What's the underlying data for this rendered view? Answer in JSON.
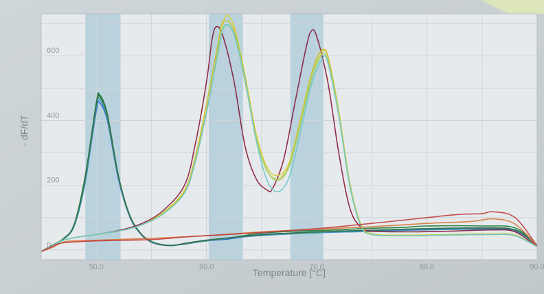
{
  "chart_data": {
    "type": "line",
    "title": "",
    "xlabel": "Temperature [°C]",
    "ylabel": "- dF/dT",
    "xlim": [
      45,
      90
    ],
    "ylim": [
      -30,
      730
    ],
    "xticks": [
      "",
      "50.0",
      "60.0",
      "70.0",
      "80.0",
      "90.0"
    ],
    "yticks": [
      0,
      200,
      400,
      600
    ],
    "grid": true,
    "legend": "none",
    "shaded_bands": [
      [
        49.0,
        52.2
      ],
      [
        60.2,
        63.3
      ],
      [
        67.6,
        70.6
      ]
    ],
    "series": [
      {
        "color": "#1f7a3a",
        "values": [
          [
            45,
            -5
          ],
          [
            46,
            14
          ],
          [
            47,
            34
          ],
          [
            48,
            80
          ],
          [
            49,
            230
          ],
          [
            50,
            455
          ],
          [
            50.3,
            480
          ],
          [
            51,
            420
          ],
          [
            52,
            230
          ],
          [
            53,
            110
          ],
          [
            54,
            52
          ],
          [
            55,
            26
          ],
          [
            56,
            16
          ],
          [
            57,
            14
          ],
          [
            58,
            20
          ],
          [
            60,
            30
          ],
          [
            62,
            36
          ],
          [
            63,
            42
          ],
          [
            65,
            52
          ],
          [
            68,
            58
          ],
          [
            70,
            60
          ],
          [
            72,
            62
          ],
          [
            74,
            66
          ],
          [
            76,
            68
          ],
          [
            78,
            70
          ],
          [
            80,
            74
          ],
          [
            85,
            74
          ],
          [
            88,
            68
          ],
          [
            90,
            15
          ]
        ]
      },
      {
        "color": "#2a63c9",
        "values": [
          [
            45,
            -5
          ],
          [
            46,
            14
          ],
          [
            47,
            34
          ],
          [
            48,
            76
          ],
          [
            49,
            215
          ],
          [
            50,
            430
          ],
          [
            50.3,
            455
          ],
          [
            51,
            400
          ],
          [
            52,
            220
          ],
          [
            53,
            105
          ],
          [
            54,
            50
          ],
          [
            55,
            24
          ],
          [
            56,
            15
          ],
          [
            57,
            14
          ],
          [
            58,
            18
          ],
          [
            60,
            28
          ],
          [
            62,
            34
          ],
          [
            65,
            48
          ],
          [
            68,
            52
          ],
          [
            70,
            54
          ],
          [
            74,
            58
          ],
          [
            78,
            62
          ],
          [
            82,
            66
          ],
          [
            85,
            66
          ],
          [
            88,
            60
          ],
          [
            90,
            14
          ]
        ]
      },
      {
        "color": "#3a8fc4",
        "values": [
          [
            45,
            -5
          ],
          [
            46,
            14
          ],
          [
            47,
            33
          ],
          [
            48,
            74
          ],
          [
            49,
            210
          ],
          [
            50,
            440
          ],
          [
            50.3,
            465
          ],
          [
            51,
            405
          ],
          [
            52,
            225
          ],
          [
            53,
            108
          ],
          [
            54,
            51
          ],
          [
            55,
            25
          ],
          [
            56,
            16
          ],
          [
            57,
            15
          ],
          [
            58,
            19
          ],
          [
            60,
            29
          ],
          [
            64,
            42
          ],
          [
            68,
            50
          ],
          [
            72,
            55
          ],
          [
            76,
            58
          ],
          [
            80,
            62
          ],
          [
            85,
            64
          ],
          [
            88,
            58
          ],
          [
            90,
            14
          ]
        ]
      },
      {
        "color": "#4aa24a",
        "values": [
          [
            45,
            -5
          ],
          [
            46,
            14
          ],
          [
            47,
            35
          ],
          [
            48,
            78
          ],
          [
            49,
            222
          ],
          [
            50,
            448
          ],
          [
            50.3,
            472
          ],
          [
            51,
            412
          ],
          [
            52,
            228
          ],
          [
            53,
            108
          ],
          [
            54,
            52
          ],
          [
            55,
            26
          ],
          [
            56,
            16
          ],
          [
            57,
            14
          ],
          [
            58,
            19
          ],
          [
            60,
            29
          ],
          [
            64,
            44
          ],
          [
            68,
            52
          ],
          [
            72,
            58
          ],
          [
            76,
            62
          ],
          [
            80,
            66
          ],
          [
            85,
            68
          ],
          [
            88,
            62
          ],
          [
            90,
            15
          ]
        ]
      },
      {
        "color": "#2f6e4d",
        "values": [
          [
            45,
            -5
          ],
          [
            46,
            14
          ],
          [
            47,
            34
          ],
          [
            48,
            79
          ],
          [
            49,
            226
          ],
          [
            50,
            452
          ],
          [
            50.3,
            476
          ],
          [
            51,
            416
          ],
          [
            52,
            230
          ],
          [
            53,
            110
          ],
          [
            54,
            52
          ],
          [
            55,
            26
          ],
          [
            56,
            16
          ],
          [
            57,
            14
          ],
          [
            58,
            20
          ],
          [
            60,
            30
          ],
          [
            64,
            44
          ],
          [
            68,
            53
          ],
          [
            72,
            58
          ],
          [
            76,
            62
          ],
          [
            80,
            66
          ],
          [
            85,
            68
          ],
          [
            88,
            62
          ],
          [
            90,
            15
          ]
        ]
      },
      {
        "color": "#8a1c3c",
        "values": [
          [
            45,
            -5
          ],
          [
            46,
            12
          ],
          [
            47,
            30
          ],
          [
            48,
            38
          ],
          [
            50,
            48
          ],
          [
            52,
            60
          ],
          [
            54,
            80
          ],
          [
            56,
            120
          ],
          [
            58,
            200
          ],
          [
            59,
            330
          ],
          [
            60,
            520
          ],
          [
            60.5,
            650
          ],
          [
            60.9,
            690
          ],
          [
            61.5,
            660
          ],
          [
            62.5,
            520
          ],
          [
            63.5,
            320
          ],
          [
            64.5,
            220
          ],
          [
            65.5,
            185
          ],
          [
            66,
            190
          ],
          [
            67,
            280
          ],
          [
            68,
            450
          ],
          [
            69,
            620
          ],
          [
            69.5,
            676
          ],
          [
            70,
            660
          ],
          [
            71,
            520
          ],
          [
            72,
            300
          ],
          [
            73,
            130
          ],
          [
            74,
            70
          ],
          [
            75,
            58
          ],
          [
            78,
            56
          ],
          [
            82,
            58
          ],
          [
            86,
            62
          ],
          [
            88,
            56
          ],
          [
            90,
            10
          ]
        ]
      },
      {
        "color": "#d9cf3a",
        "values": [
          [
            45,
            -5
          ],
          [
            46,
            12
          ],
          [
            47,
            30
          ],
          [
            48,
            38
          ],
          [
            50,
            48
          ],
          [
            52,
            58
          ],
          [
            54,
            76
          ],
          [
            56,
            112
          ],
          [
            58,
            180
          ],
          [
            59,
            280
          ],
          [
            60,
            430
          ],
          [
            61,
            610
          ],
          [
            61.7,
            720
          ],
          [
            62.5,
            690
          ],
          [
            63.5,
            540
          ],
          [
            64.5,
            360
          ],
          [
            65.5,
            255
          ],
          [
            66.5,
            230
          ],
          [
            67.5,
            270
          ],
          [
            68.5,
            400
          ],
          [
            69.5,
            540
          ],
          [
            70.5,
            610
          ],
          [
            71,
            600
          ],
          [
            72,
            430
          ],
          [
            73,
            210
          ],
          [
            74,
            80
          ],
          [
            75,
            50
          ],
          [
            78,
            46
          ],
          [
            82,
            48
          ],
          [
            86,
            50
          ],
          [
            88,
            46
          ],
          [
            90,
            10
          ]
        ]
      },
      {
        "color": "#c9bf2c",
        "values": [
          [
            45,
            -5
          ],
          [
            46,
            12
          ],
          [
            47,
            30
          ],
          [
            48,
            38
          ],
          [
            50,
            48
          ],
          [
            52,
            58
          ],
          [
            54,
            76
          ],
          [
            56,
            114
          ],
          [
            58,
            184
          ],
          [
            59,
            290
          ],
          [
            60,
            450
          ],
          [
            61,
            630
          ],
          [
            61.5,
            705
          ],
          [
            62.5,
            680
          ],
          [
            63.5,
            530
          ],
          [
            64.5,
            350
          ],
          [
            65.5,
            245
          ],
          [
            66.5,
            220
          ],
          [
            67.5,
            262
          ],
          [
            68.5,
            395
          ],
          [
            69.5,
            540
          ],
          [
            70.3,
            612
          ],
          [
            71,
            598
          ],
          [
            72,
            420
          ],
          [
            73,
            200
          ],
          [
            74,
            76
          ],
          [
            75,
            48
          ],
          [
            78,
            44
          ],
          [
            82,
            46
          ],
          [
            86,
            48
          ],
          [
            88,
            44
          ],
          [
            90,
            10
          ]
        ]
      },
      {
        "color": "#9ad26a",
        "values": [
          [
            45,
            -5
          ],
          [
            46,
            12
          ],
          [
            47,
            30
          ],
          [
            48,
            38
          ],
          [
            50,
            48
          ],
          [
            52,
            58
          ],
          [
            54,
            76
          ],
          [
            56,
            110
          ],
          [
            58,
            176
          ],
          [
            59,
            275
          ],
          [
            60,
            425
          ],
          [
            61,
            600
          ],
          [
            61.6,
            690
          ],
          [
            62.5,
            665
          ],
          [
            63.5,
            520
          ],
          [
            64.5,
            345
          ],
          [
            65.5,
            245
          ],
          [
            66.5,
            215
          ],
          [
            67.5,
            258
          ],
          [
            68.5,
            385
          ],
          [
            69.5,
            525
          ],
          [
            70.4,
            600
          ],
          [
            71,
            585
          ],
          [
            72,
            415
          ],
          [
            73,
            200
          ],
          [
            74,
            75
          ],
          [
            75,
            48
          ],
          [
            78,
            44
          ],
          [
            82,
            46
          ],
          [
            86,
            48
          ],
          [
            88,
            44
          ],
          [
            90,
            10
          ]
        ]
      },
      {
        "color": "#6fc6c8",
        "values": [
          [
            45,
            -5
          ],
          [
            46,
            12
          ],
          [
            47,
            30
          ],
          [
            48,
            38
          ],
          [
            50,
            48
          ],
          [
            52,
            58
          ],
          [
            54,
            76
          ],
          [
            56,
            110
          ],
          [
            58,
            176
          ],
          [
            59,
            275
          ],
          [
            60,
            425
          ],
          [
            61,
            605
          ],
          [
            61.6,
            692
          ],
          [
            62.5,
            668
          ],
          [
            63.5,
            525
          ],
          [
            64.5,
            340
          ],
          [
            65.5,
            215
          ],
          [
            66.5,
            180
          ],
          [
            67.5,
            225
          ],
          [
            68.5,
            360
          ],
          [
            69.5,
            510
          ],
          [
            70.5,
            590
          ],
          [
            71,
            580
          ],
          [
            72,
            415
          ],
          [
            73,
            200
          ],
          [
            74,
            75
          ],
          [
            75,
            48
          ],
          [
            78,
            44
          ],
          [
            82,
            46
          ],
          [
            86,
            48
          ],
          [
            88,
            44
          ],
          [
            90,
            10
          ]
        ]
      },
      {
        "color": "#d77a3a",
        "values": [
          [
            45,
            -5
          ],
          [
            46,
            8
          ],
          [
            47,
            24
          ],
          [
            48,
            28
          ],
          [
            50,
            30
          ],
          [
            55,
            36
          ],
          [
            60,
            44
          ],
          [
            65,
            56
          ],
          [
            70,
            64
          ],
          [
            75,
            72
          ],
          [
            80,
            82
          ],
          [
            84,
            88
          ],
          [
            86,
            96
          ],
          [
            88,
            80
          ],
          [
            90,
            12
          ]
        ]
      },
      {
        "color": "#c04040",
        "values": [
          [
            45,
            -5
          ],
          [
            46,
            10
          ],
          [
            47,
            22
          ],
          [
            50,
            28
          ],
          [
            55,
            32
          ],
          [
            58,
            40
          ],
          [
            60,
            44
          ],
          [
            65,
            54
          ],
          [
            70,
            66
          ],
          [
            75,
            82
          ],
          [
            80,
            100
          ],
          [
            83,
            110
          ],
          [
            85,
            112
          ],
          [
            86,
            118
          ],
          [
            88,
            100
          ],
          [
            90,
            12
          ]
        ]
      }
    ]
  }
}
